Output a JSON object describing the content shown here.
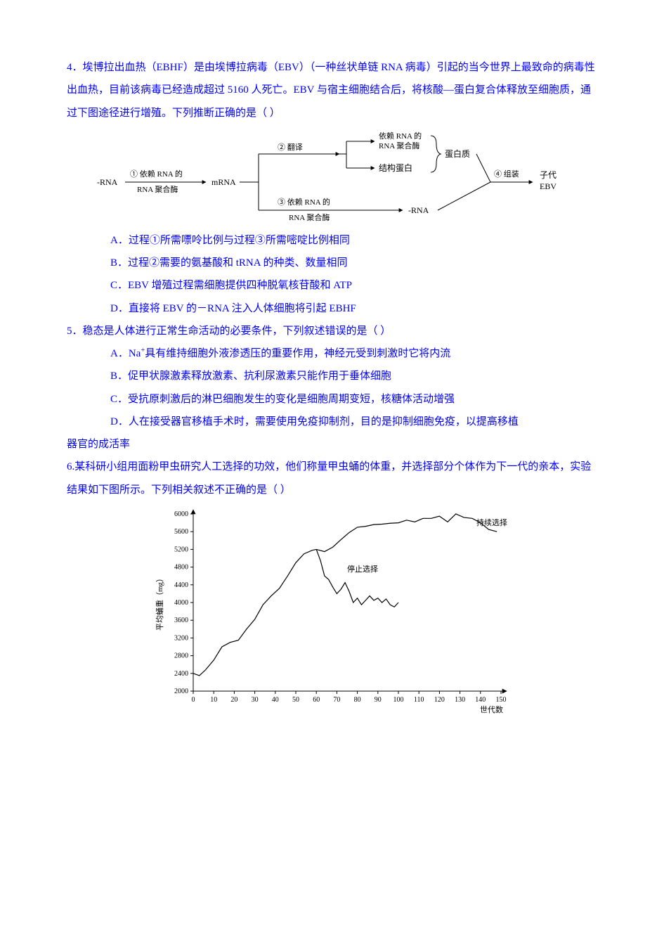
{
  "q4": {
    "stem": "4．埃博拉出血热（EBHF）是由埃博拉病毒（EBV）（一种丝状单链 RNA 病毒）引起的当今世界上最致命的病毒性出血热，目前该病毒已经造成超过 5160 人死亡。EBV 与宿主细胞结合后，将核酸—蛋白复合体释放至细胞质，通过下图途径进行增殖。下列推断正确的是（ ）",
    "options": {
      "A": "A．过程①所需嘌呤比例与过程③所需嘧啶比例相同",
      "B": "B．过程②需要的氨基酸和 tRNA 的种类、数量相同",
      "C": "C．EBV 增殖过程需细胞提供四种脱氧核苷酸和 ATP",
      "D": "D．直接将 EBV 的－RNA 注入人体细胞将引起 EBHF"
    },
    "flow": {
      "nodes": {
        "nrna": "-RNA",
        "step1_top": "① 依赖 RNA 的",
        "step1_bot": "RNA 聚合酶",
        "mrna": "mRNA",
        "step2": "② 翻译",
        "poly_top": "依赖 RNA 的",
        "poly_bot": "RNA 聚合酶",
        "struct": "结构蛋白",
        "protein": "蛋白质",
        "step3_top": "③ 依赖 RNA 的",
        "step3_bot": "RNA 聚合酶",
        "nrna2": "-RNA",
        "step4": "④ 组装",
        "prog_top": "子代",
        "prog_bot": "EBV"
      },
      "style": {
        "stroke": "#000000",
        "stroke_width": 1,
        "font_size": 12
      }
    }
  },
  "q5": {
    "stem": "5．稳态是人体进行正常生命活动的必要条件，下列叙述错误的是（ ）",
    "options": {
      "A_pre": "A．Na",
      "A_post": "具有维持细胞外液渗透压的重要作用，神经元受到刺激时它将内流",
      "B": "B．促甲状腺激素释放激素、抗利尿激素只能作用于垂体细胞",
      "C": "C．受抗原刺激后的淋巴细胞发生的变化是细胞周期变短，核糖体活动增强",
      "D1": "D．人在接受器官移植手术时，需要使用免疫抑制剂，目的是抑制细胞免疫，以提高移植",
      "D2": "器官的成活率"
    }
  },
  "q6": {
    "stem": "6.某科研小组用面粉甲虫研究人工选择的功效，他们称量甲虫蛹的体重，并选择部分个体作为下一代的亲本，实验结果如下图所示。下列相关叙述不正确的是（ ）"
  },
  "chart": {
    "type": "line",
    "x_axis": {
      "label": "世代数",
      "min": 0,
      "max": 150,
      "tick_step": 10
    },
    "y_axis": {
      "label": "平均蛹重（mg）",
      "min": 2000,
      "max": 6000,
      "tick_step": 400
    },
    "series": [
      {
        "name": "shared",
        "label": "",
        "points": [
          [
            0,
            2400
          ],
          [
            3,
            2350
          ],
          [
            6,
            2480
          ],
          [
            10,
            2700
          ],
          [
            14,
            3000
          ],
          [
            18,
            3100
          ],
          [
            22,
            3150
          ],
          [
            26,
            3400
          ],
          [
            30,
            3620
          ],
          [
            34,
            3950
          ],
          [
            38,
            4150
          ],
          [
            42,
            4320
          ],
          [
            46,
            4600
          ],
          [
            50,
            4900
          ],
          [
            54,
            5100
          ],
          [
            58,
            5180
          ],
          [
            60,
            5200
          ]
        ]
      },
      {
        "name": "continued",
        "label": "持续选择",
        "label_pos": [
          138,
          5750
        ],
        "points": [
          [
            60,
            5200
          ],
          [
            64,
            5150
          ],
          [
            68,
            5250
          ],
          [
            72,
            5420
          ],
          [
            76,
            5580
          ],
          [
            80,
            5700
          ],
          [
            84,
            5720
          ],
          [
            88,
            5760
          ],
          [
            92,
            5770
          ],
          [
            96,
            5790
          ],
          [
            100,
            5800
          ],
          [
            104,
            5860
          ],
          [
            108,
            5820
          ],
          [
            112,
            5900
          ],
          [
            116,
            5900
          ],
          [
            120,
            5950
          ],
          [
            124,
            5820
          ],
          [
            128,
            6000
          ],
          [
            132,
            5920
          ],
          [
            136,
            5900
          ],
          [
            140,
            5800
          ],
          [
            144,
            5650
          ],
          [
            148,
            5600
          ]
        ]
      },
      {
        "name": "stopped",
        "label": "停止选择",
        "label_pos": [
          75,
          4700
        ],
        "points": [
          [
            60,
            5200
          ],
          [
            62,
            4950
          ],
          [
            64,
            4600
          ],
          [
            66,
            4520
          ],
          [
            68,
            4350
          ],
          [
            70,
            4200
          ],
          [
            72,
            4300
          ],
          [
            74,
            4450
          ],
          [
            76,
            4250
          ],
          [
            78,
            4000
          ],
          [
            80,
            4100
          ],
          [
            82,
            3950
          ],
          [
            84,
            4050
          ],
          [
            86,
            4150
          ],
          [
            88,
            4050
          ],
          [
            90,
            4100
          ],
          [
            92,
            4000
          ],
          [
            94,
            4080
          ],
          [
            96,
            3950
          ],
          [
            98,
            3900
          ],
          [
            100,
            4000
          ]
        ]
      }
    ],
    "style": {
      "stroke": "#000000",
      "stroke_width": 1.2,
      "font_size": 11,
      "axis_font_size": 10,
      "background": "#ffffff"
    }
  }
}
